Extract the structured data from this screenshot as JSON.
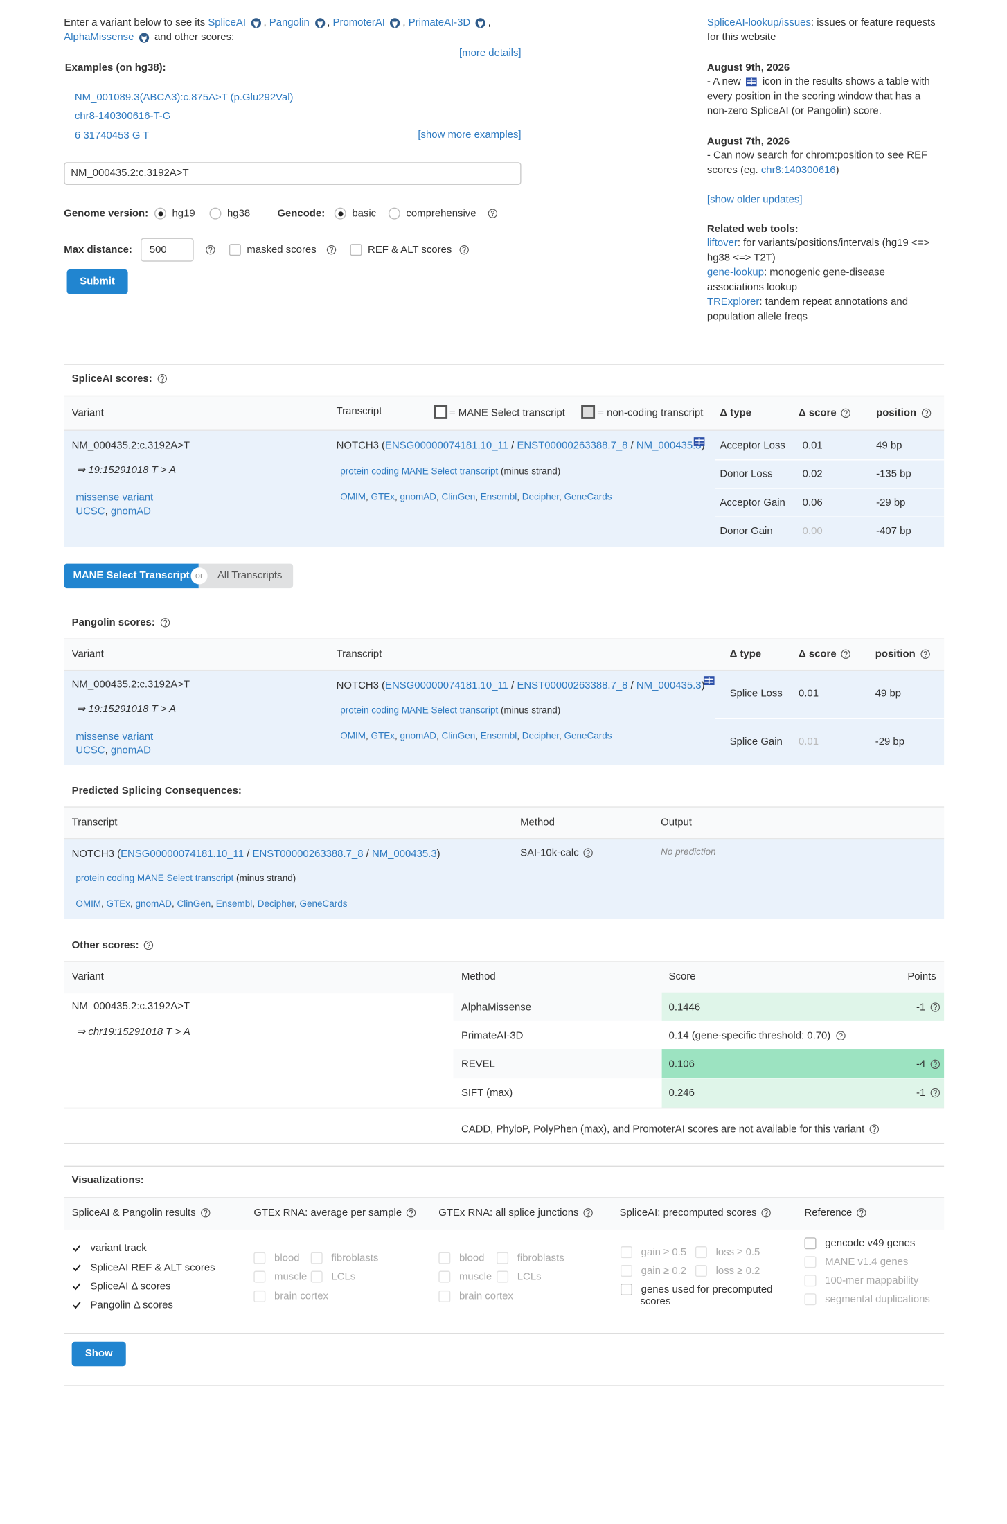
{
  "intro": {
    "lead": "Enter a variant below to see its",
    "tools": [
      "SpliceAI",
      "Pangolin",
      "PromoterAI",
      "PrimateAI-3D",
      "AlphaMissense"
    ],
    "tail": "and other scores:",
    "more_details": "[more details]"
  },
  "examples": {
    "label": "Examples",
    "note": "(on hg38):",
    "items": [
      "NM_001089.3(ABCA3):c.875A>T (p.Glu292Val)",
      "chr8-140300616-T-G",
      "6  31740453  G  T"
    ],
    "show_more": "[show more examples]"
  },
  "form": {
    "variant": "NM_000435.2:c.3192A>T",
    "genome": {
      "label": "Genome version:",
      "options": [
        {
          "label": "hg19",
          "selected": true
        },
        {
          "label": "hg38",
          "selected": false
        }
      ]
    },
    "gencode": {
      "label": "Gencode:",
      "options": [
        {
          "label": "basic",
          "selected": true
        },
        {
          "label": "comprehensive",
          "selected": false
        }
      ]
    },
    "max_distance": {
      "label": "Max distance:",
      "value": "500"
    },
    "checkboxes": [
      {
        "label": "masked scores",
        "checked": false
      },
      {
        "label": "REF & ALT scores",
        "checked": false
      }
    ],
    "submit": "Submit"
  },
  "sidebar": {
    "issues": {
      "link": "SpliceAI-lookup/issues",
      "text": ": issues or feature requests for this website"
    },
    "updates": [
      {
        "date": "August 9th, 2026",
        "before": "- A new",
        "after": "icon in the results shows a table with every position in the scoring window that has a non-zero SpliceAI (or Pangolin) score."
      },
      {
        "date": "August 7th, 2026",
        "before": "- Can now search for chrom:position to see REF scores (eg.",
        "link": "chr8:140300616",
        "after": ")"
      }
    ],
    "older": "[show older updates]",
    "tools_title": "Related web tools:",
    "tools": [
      {
        "link": "liftover",
        "text": ": for variants/positions/intervals (hg19 <=> hg38 <=> T2T)"
      },
      {
        "link": "gene-lookup",
        "text": ": monogenic gene-disease associations lookup"
      },
      {
        "link": "TRExplorer",
        "text": ": tandem repeat annotations and population allele freqs"
      }
    ]
  },
  "punct": {
    "comma": ",",
    "slash": "/",
    "open": "(",
    "close": ")"
  },
  "variant": {
    "name": "NM_000435.2:c.3192A>T",
    "coords": "⇒ 19:15291018 T > A",
    "consequence": "missense variant",
    "links": [
      "UCSC",
      "gnomAD"
    ]
  },
  "transcript": {
    "gene": "NOTCH3",
    "ids": [
      "ENSG00000074181.10_11",
      "ENST00000263388.7_8",
      "NM_000435.3"
    ],
    "biotype": "protein coding",
    "mane": "MANE Select transcript",
    "strand": "(minus strand)",
    "links": [
      "OMIM",
      "GTEx",
      "gnomAD",
      "ClinGen",
      "Ensembl",
      "Decipher",
      "GeneCards"
    ]
  },
  "spliceai": {
    "title": "SpliceAI scores:",
    "headers": {
      "variant": "Variant",
      "transcript": "Transcript",
      "legend_mane": "= MANE Select transcript",
      "legend_noncoding": "= non-coding transcript",
      "type": "Δ type",
      "score": "Δ score",
      "position": "position"
    },
    "rows": [
      {
        "type": "Acceptor Loss",
        "score": "0.01",
        "position": "49 bp",
        "muted": false
      },
      {
        "type": "Donor Loss",
        "score": "0.02",
        "position": "-135 bp",
        "muted": false
      },
      {
        "type": "Acceptor Gain",
        "score": "0.06",
        "position": "-29 bp",
        "muted": false
      },
      {
        "type": "Donor Gain",
        "score": "0.00",
        "position": "-407 bp",
        "muted": true
      }
    ]
  },
  "toggle": {
    "selected": "MANE Select Transcript",
    "or": "or",
    "other": "All Transcripts"
  },
  "pangolin": {
    "title": "Pangolin scores:",
    "headers": {
      "variant": "Variant",
      "transcript": "Transcript",
      "type": "Δ type",
      "score": "Δ score",
      "position": "position"
    },
    "rows": [
      {
        "type": "Splice Loss",
        "score": "0.01",
        "position": "49 bp",
        "muted": false
      },
      {
        "type": "Splice Gain",
        "score": "0.01",
        "position": "-29 bp",
        "muted": true
      }
    ]
  },
  "consequences": {
    "title": "Predicted Splicing Consequences:",
    "headers": [
      "Transcript",
      "Method",
      "Output"
    ],
    "method": "SAI-10k-calc",
    "output": "No prediction"
  },
  "other": {
    "title": "Other scores:",
    "headers": [
      "Variant",
      "Method",
      "Score",
      "Points"
    ],
    "variant": "NM_000435.2:c.3192A>T",
    "coords": "⇒ chr19:15291018 T > A",
    "rows": [
      {
        "method": "AlphaMissense",
        "score": "0.1446",
        "points": "-1",
        "color": "#dff5e9"
      },
      {
        "method": "PrimateAI-3D",
        "score": "0.14",
        "note": "(gene-specific threshold: 0.70)"
      },
      {
        "method": "REVEL",
        "score": "0.106",
        "points": "-4",
        "color": "#9ce3c1"
      },
      {
        "method": "SIFT (max)",
        "score": "0.246",
        "points": "-1",
        "color": "#dff5e9"
      }
    ],
    "unavailable": "CADD, PhyloP, PolyPhen (max), and PromoterAI scores are not available for this variant"
  },
  "visualizations": {
    "title": "Visualizations:",
    "columns": [
      {
        "title": "SpliceAI & Pangolin results",
        "options": [
          {
            "label": "variant track",
            "checked": true,
            "enabled": true
          },
          {
            "label": "SpliceAI REF & ALT scores",
            "checked": true,
            "enabled": true
          },
          {
            "label": "SpliceAI Δ scores",
            "checked": true,
            "enabled": true
          },
          {
            "label": "Pangolin Δ scores",
            "checked": true,
            "enabled": true
          }
        ]
      },
      {
        "title": "GTEx RNA: average per sample",
        "options": [
          {
            "label": "blood",
            "checked": false,
            "enabled": false
          },
          {
            "label": "fibroblasts",
            "checked": false,
            "enabled": false
          },
          {
            "label": "muscle",
            "checked": false,
            "enabled": false
          },
          {
            "label": "LCLs",
            "checked": false,
            "enabled": false
          },
          {
            "label": "brain cortex",
            "checked": false,
            "enabled": false
          }
        ]
      },
      {
        "title": "GTEx RNA: all splice junctions",
        "options": [
          {
            "label": "blood",
            "checked": false,
            "enabled": false
          },
          {
            "label": "fibroblasts",
            "checked": false,
            "enabled": false
          },
          {
            "label": "muscle",
            "checked": false,
            "enabled": false
          },
          {
            "label": "LCLs",
            "checked": false,
            "enabled": false
          },
          {
            "label": "brain cortex",
            "checked": false,
            "enabled": false
          }
        ]
      },
      {
        "title": "SpliceAI: precomputed scores",
        "options": [
          {
            "label": "gain ≥ 0.5",
            "checked": false,
            "enabled": false
          },
          {
            "label": "loss ≥ 0.5",
            "checked": false,
            "enabled": false
          },
          {
            "label": "gain ≥ 0.2",
            "checked": false,
            "enabled": false
          },
          {
            "label": "loss ≥ 0.2",
            "checked": false,
            "enabled": false
          },
          {
            "label": "genes used for precomputed scores",
            "checked": false,
            "enabled": true
          }
        ]
      },
      {
        "title": "Reference",
        "options": [
          {
            "label": "gencode v49 genes",
            "checked": false,
            "enabled": true
          },
          {
            "label": "MANE v1.4 genes",
            "checked": false,
            "enabled": false
          },
          {
            "label": "100-mer mappability",
            "checked": false,
            "enabled": false
          },
          {
            "label": "segmental duplications",
            "checked": false,
            "enabled": false
          }
        ]
      }
    ],
    "show": "Show"
  }
}
